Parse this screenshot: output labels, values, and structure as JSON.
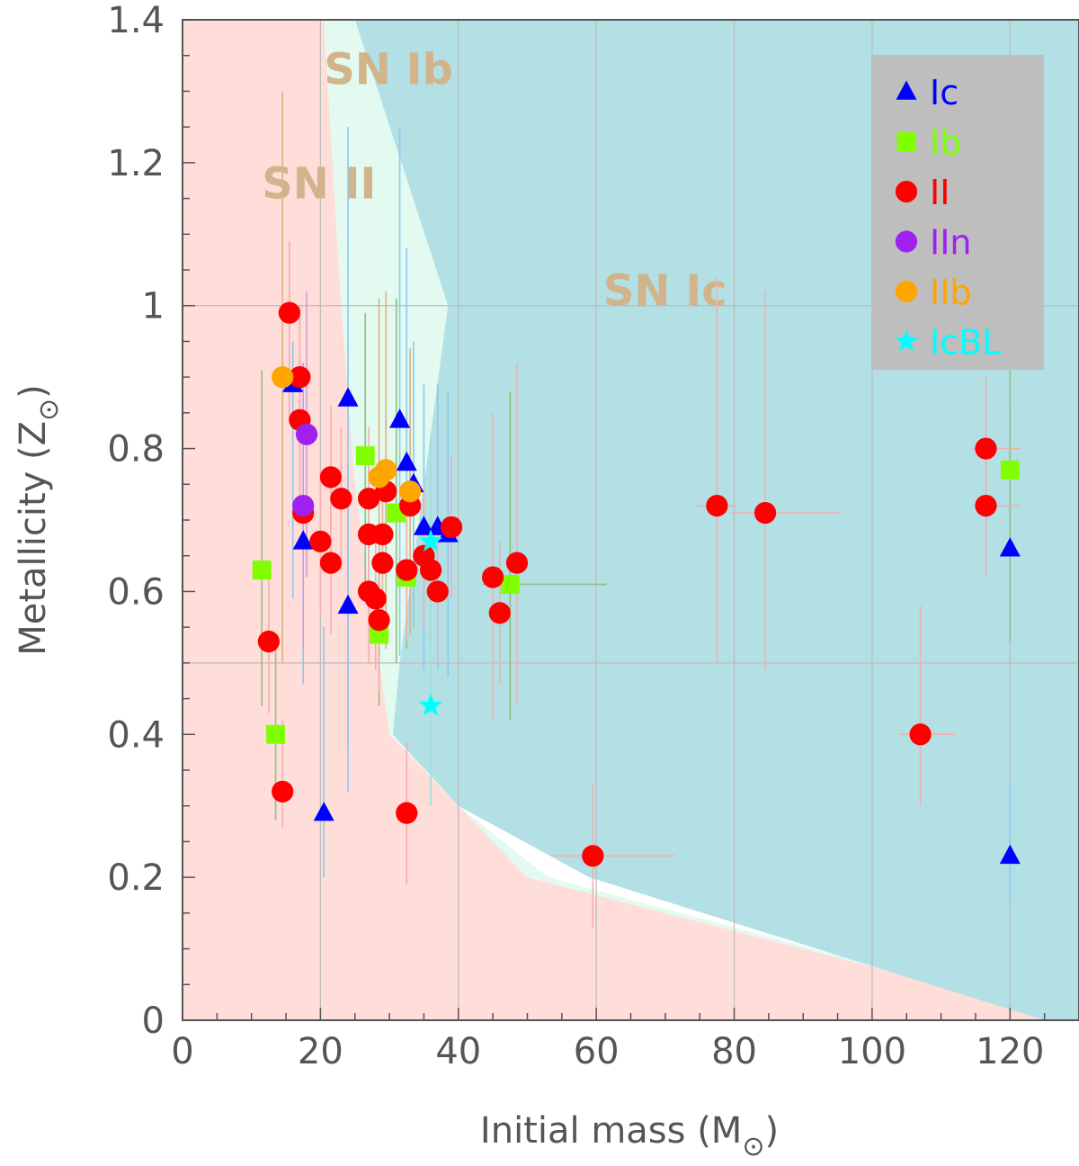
{
  "chart_data": {
    "type": "scatter",
    "title": "",
    "xlabel": "Initial mass (M",
    "xlabel_sub": "⊙",
    "xlabel_end": ")",
    "ylabel": "Metallicity (Z",
    "ylabel_sub": "⊙",
    "ylabel_end": ")",
    "xlim": [
      0,
      130
    ],
    "ylim": [
      0,
      1.4
    ],
    "xticks": [
      0,
      20,
      40,
      60,
      80,
      100,
      120
    ],
    "xtick_labels": [
      "0",
      "20",
      "40",
      "60",
      "80",
      "100",
      "120"
    ],
    "yticks": [
      0,
      0.2,
      0.4,
      0.6,
      0.8,
      1,
      1.2,
      1.4
    ],
    "ytick_labels": [
      "0",
      "0.2",
      "0.4",
      "0.6",
      "0.8",
      "1",
      "1.2",
      "1.4"
    ],
    "grid": true,
    "legend_position": "top-right",
    "colors": {
      "region_II": "#ffddd9",
      "region_Ib": "#e2faef",
      "region_Ic": "#b2e0e5",
      "region_label": "#d2b48c",
      "grid": "#bbbbbb",
      "legend_bg": "#bebebe",
      "axis": "#555555"
    },
    "regions": [
      {
        "name": "SN II",
        "label": "SN  II",
        "label_at": [
          11.5,
          1.15
        ],
        "polygon": [
          [
            0,
            0
          ],
          [
            0,
            1.4
          ],
          [
            20.5,
            1.4
          ],
          [
            23,
            1.0
          ],
          [
            25,
            0.75
          ],
          [
            30,
            0.4
          ],
          [
            40,
            0.3
          ],
          [
            50,
            0.2
          ],
          [
            130,
            0
          ]
        ]
      },
      {
        "name": "SN Ib",
        "label": "SN  Ib",
        "label_at": [
          20.5,
          1.31
        ],
        "polygon": [
          [
            20.5,
            1.4
          ],
          [
            25,
            1.4
          ],
          [
            38.5,
            1.0
          ],
          [
            31.5,
            0.5
          ],
          [
            30.5,
            0.4
          ],
          [
            40,
            0.3
          ],
          [
            53,
            0.2
          ],
          [
            130,
            0
          ],
          [
            130,
            0
          ],
          [
            50,
            0.2
          ],
          [
            40,
            0.3
          ],
          [
            30,
            0.4
          ],
          [
            25,
            0.75
          ],
          [
            23,
            1.0
          ]
        ]
      },
      {
        "name": "SN Ic",
        "label": "SN  Ic",
        "label_at": [
          61,
          1.0
        ],
        "polygon": [
          [
            25,
            1.4
          ],
          [
            130,
            1.4
          ],
          [
            130,
            0
          ],
          [
            125,
            0
          ],
          [
            59,
            0.2
          ],
          [
            40,
            0.3
          ],
          [
            30.5,
            0.4
          ],
          [
            31.5,
            0.5
          ],
          [
            38.5,
            1.0
          ]
        ]
      }
    ],
    "legend": [
      {
        "label": "Ic",
        "marker": "triangle",
        "color": "#0000ff"
      },
      {
        "label": "Ib",
        "marker": "square",
        "color": "#7fff00"
      },
      {
        "label": "II",
        "marker": "circle",
        "color": "#ff0000"
      },
      {
        "label": "IIn",
        "marker": "circle",
        "color": "#a020f0"
      },
      {
        "label": "IIb",
        "marker": "circle",
        "color": "#ffa500"
      },
      {
        "label": "IcBL",
        "marker": "star",
        "color": "#00ffff"
      }
    ],
    "series": [
      {
        "name": "Ic",
        "marker": "triangle",
        "color": "#0000ff",
        "errcolor": "#8ec8f0",
        "points": [
          {
            "x": 16,
            "y": 0.89,
            "yerr": [
              0.3,
              0.06
            ]
          },
          {
            "x": 24,
            "y": 0.87,
            "yerr": [
              0.55,
              0.38
            ]
          },
          {
            "x": 17.5,
            "y": 0.67,
            "yerr": [
              0.2,
              0.2
            ]
          },
          {
            "x": 24,
            "y": 0.58,
            "yerr": [
              0.2,
              0.2
            ]
          },
          {
            "x": 20.5,
            "y": 0.29,
            "yerr": [
              0.09,
              0.26
            ]
          },
          {
            "x": 31.5,
            "y": 0.84,
            "yerr": [
              0.33,
              0.41
            ]
          },
          {
            "x": 32.5,
            "y": 0.78,
            "yerr": [
              0.25,
              0.3
            ]
          },
          {
            "x": 33.5,
            "y": 0.75,
            "yerr": [
              0.2,
              0.2
            ]
          },
          {
            "x": 35,
            "y": 0.69,
            "yerr": [
              0.2,
              0.2
            ]
          },
          {
            "x": 37,
            "y": 0.69,
            "yerr": [
              0.2,
              0.2
            ]
          },
          {
            "x": 38.5,
            "y": 0.68,
            "yerr": [
              0.2,
              0.2
            ]
          },
          {
            "x": 120,
            "y": 0.66,
            "yerr": [
              0.13,
              0.2
            ]
          },
          {
            "x": 120,
            "y": 0.23,
            "yerr": [
              0.07,
              0.1
            ]
          }
        ]
      },
      {
        "name": "Ib",
        "marker": "square",
        "color": "#7fff00",
        "errcolor": "#90c080",
        "points": [
          {
            "x": 11.5,
            "y": 0.63,
            "yerr": [
              0.19,
              0.28
            ]
          },
          {
            "x": 13.5,
            "y": 0.4,
            "yerr": [
              0.12,
              0.12
            ]
          },
          {
            "x": 26.5,
            "y": 0.79,
            "yerr": [
              0.2,
              0.2
            ]
          },
          {
            "x": 31,
            "y": 0.71,
            "yerr": [
              0.21,
              0.3
            ]
          },
          {
            "x": 28.5,
            "y": 0.54,
            "yerr": [
              0.1,
              0.1
            ]
          },
          {
            "x": 32.5,
            "y": 0.62,
            "yerr": [
              0.1,
              0.1
            ]
          },
          {
            "x": 47.5,
            "y": 0.61,
            "yerr": [
              0.19,
              0.27
            ],
            "xerr": [
              4,
              14
            ]
          },
          {
            "x": 120,
            "y": 0.77,
            "yerr": [
              0.24,
              0.15
            ]
          }
        ]
      },
      {
        "name": "II",
        "marker": "circle",
        "color": "#ff0000",
        "errcolor": "#f0b0b0",
        "points": [
          {
            "x": 15.5,
            "y": 0.99,
            "yerr": [
              0.15,
              0.1
            ]
          },
          {
            "x": 17,
            "y": 0.9,
            "yerr": [
              0.15,
              0.1
            ]
          },
          {
            "x": 17,
            "y": 0.84,
            "yerr": [
              0.12,
              0.1
            ]
          },
          {
            "x": 17.5,
            "y": 0.71,
            "yerr": [
              0.12,
              0.1
            ]
          },
          {
            "x": 12.5,
            "y": 0.53,
            "yerr": [
              0.1,
              0.1
            ]
          },
          {
            "x": 14.5,
            "y": 0.32,
            "yerr": [
              0.05,
              0.1
            ]
          },
          {
            "x": 20,
            "y": 0.67,
            "yerr": [
              0.1,
              0.1
            ]
          },
          {
            "x": 21.5,
            "y": 0.76,
            "yerr": [
              0.1,
              0.1
            ]
          },
          {
            "x": 21.5,
            "y": 0.64,
            "yerr": [
              0.1,
              0.1
            ]
          },
          {
            "x": 23,
            "y": 0.73,
            "yerr": [
              0.1,
              0.1
            ]
          },
          {
            "x": 27,
            "y": 0.73,
            "yerr": [
              0.1,
              0.1
            ]
          },
          {
            "x": 27,
            "y": 0.68,
            "yerr": [
              0.1,
              0.1
            ]
          },
          {
            "x": 27,
            "y": 0.6,
            "yerr": [
              0.1,
              0.1
            ]
          },
          {
            "x": 28,
            "y": 0.59,
            "yerr": [
              0.1,
              0.1
            ]
          },
          {
            "x": 29,
            "y": 0.68,
            "yerr": [
              0.1,
              0.1
            ]
          },
          {
            "x": 29,
            "y": 0.64,
            "yerr": [
              0.1,
              0.1
            ]
          },
          {
            "x": 29.5,
            "y": 0.74,
            "yerr": [
              0.1,
              0.1
            ]
          },
          {
            "x": 28.5,
            "y": 0.56,
            "yerr": [
              0.1,
              0.1
            ]
          },
          {
            "x": 32.5,
            "y": 0.63,
            "yerr": [
              0.1,
              0.1
            ]
          },
          {
            "x": 33,
            "y": 0.72,
            "yerr": [
              0.1,
              0.1
            ]
          },
          {
            "x": 32.5,
            "y": 0.29,
            "yerr": [
              0.1,
              0.1
            ]
          },
          {
            "x": 35,
            "y": 0.65,
            "yerr": [
              0.1,
              0.1
            ]
          },
          {
            "x": 36,
            "y": 0.63,
            "yerr": [
              0.1,
              0.1
            ]
          },
          {
            "x": 37,
            "y": 0.6,
            "yerr": [
              0.1,
              0.1
            ]
          },
          {
            "x": 39,
            "y": 0.69,
            "yerr": [
              0.1,
              0.1
            ]
          },
          {
            "x": 45,
            "y": 0.62,
            "yerr": [
              0.2,
              0.23
            ]
          },
          {
            "x": 46,
            "y": 0.57,
            "yerr": [
              0.1,
              0.1
            ]
          },
          {
            "x": 48.5,
            "y": 0.64,
            "yerr": [
              0.2,
              0.28
            ]
          },
          {
            "x": 59.5,
            "y": 0.23,
            "yerr": [
              0.1,
              0.1
            ],
            "xerr": [
              6,
              12
            ]
          },
          {
            "x": 77.5,
            "y": 0.72,
            "yerr": [
              0.22,
              0.32
            ],
            "xerr": [
              3,
              3
            ]
          },
          {
            "x": 84.5,
            "y": 0.71,
            "yerr": [
              0.22,
              0.31
            ],
            "xerr": [
              5,
              11
            ]
          },
          {
            "x": 107,
            "y": 0.4,
            "yerr": [
              0.1,
              0.18
            ],
            "xerr": [
              3,
              5
            ]
          },
          {
            "x": 116.5,
            "y": 0.8,
            "yerr": [
              0.1,
              0.1
            ],
            "xerr": [
              2,
              5
            ]
          },
          {
            "x": 116.5,
            "y": 0.72,
            "yerr": [
              0.1,
              0.1
            ],
            "xerr": [
              2,
              5
            ]
          }
        ]
      },
      {
        "name": "IIn",
        "marker": "circle",
        "color": "#a020f0",
        "errcolor": "#c8a0e0",
        "points": [
          {
            "x": 18,
            "y": 0.82,
            "yerr": [
              0.2,
              0.2
            ]
          },
          {
            "x": 17.5,
            "y": 0.72,
            "yerr": [
              0.2,
              0.2
            ]
          }
        ]
      },
      {
        "name": "IIb",
        "marker": "circle",
        "color": "#ffa500",
        "errcolor": "#e0b080",
        "points": [
          {
            "x": 14.5,
            "y": 0.9,
            "yerr": [
              0.4,
              0.4
            ]
          },
          {
            "x": 28.5,
            "y": 0.76,
            "yerr": [
              0.25,
              0.25
            ]
          },
          {
            "x": 29.5,
            "y": 0.77,
            "yerr": [
              0.25,
              0.25
            ]
          },
          {
            "x": 33,
            "y": 0.74,
            "yerr": [
              0.2,
              0.2
            ]
          }
        ]
      },
      {
        "name": "IcBL",
        "marker": "star",
        "color": "#00ffff",
        "errcolor": "#9ee0d8",
        "points": [
          {
            "x": 36,
            "y": 0.67,
            "yerr": [
              0.15,
              0.15
            ]
          },
          {
            "x": 36,
            "y": 0.44,
            "yerr": [
              0.14,
              0.14
            ]
          }
        ]
      }
    ]
  }
}
